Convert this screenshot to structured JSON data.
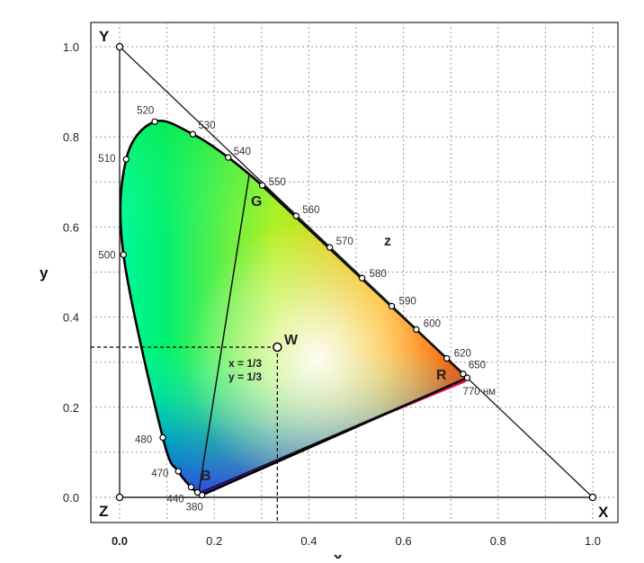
{
  "diagram": {
    "x_ticks": [
      "0.0",
      "0.2",
      "0.4",
      "0.6",
      "0.8",
      "1.0"
    ],
    "y_ticks": [
      "0.0",
      "0.2",
      "0.4",
      "0.6",
      "0.8",
      "1.0"
    ],
    "x_axis_label": "x",
    "y_axis_label": "y",
    "vertices": {
      "Y": "Y",
      "Z": "Z",
      "X": "X",
      "z": "z"
    },
    "primaries": {
      "R": "R",
      "G": "G",
      "B": "B",
      "W": "W"
    },
    "white_point": {
      "label": "W",
      "x": 0.3333,
      "y": 0.3333,
      "annot_x": "x = 1/3",
      "annot_y": "y = 1/3"
    },
    "primary_points": {
      "R": {
        "x": 0.735,
        "y": 0.265
      },
      "G": {
        "x": 0.274,
        "y": 0.717
      },
      "B": {
        "x": 0.167,
        "y": 0.009
      }
    },
    "wavelengths": [
      {
        "label": "380",
        "x": 0.1741,
        "y": 0.005
      },
      {
        "label": "440",
        "x": 0.1644,
        "y": 0.0109
      },
      {
        "label": "",
        "x": 0.151,
        "y": 0.0227
      },
      {
        "label": "470",
        "x": 0.1241,
        "y": 0.0578
      },
      {
        "label": "480",
        "x": 0.0913,
        "y": 0.1327
      },
      {
        "label": "500",
        "x": 0.0082,
        "y": 0.5384
      },
      {
        "label": "510",
        "x": 0.0139,
        "y": 0.7502
      },
      {
        "label": "520",
        "x": 0.0743,
        "y": 0.8338
      },
      {
        "label": "530",
        "x": 0.1547,
        "y": 0.8059
      },
      {
        "label": "540",
        "x": 0.2296,
        "y": 0.7543
      },
      {
        "label": "550",
        "x": 0.3016,
        "y": 0.6923
      },
      {
        "label": "560",
        "x": 0.3731,
        "y": 0.6245
      },
      {
        "label": "570",
        "x": 0.4441,
        "y": 0.5547
      },
      {
        "label": "580",
        "x": 0.5125,
        "y": 0.4866
      },
      {
        "label": "590",
        "x": 0.5752,
        "y": 0.4242
      },
      {
        "label": "600",
        "x": 0.627,
        "y": 0.3725
      },
      {
        "label": "620",
        "x": 0.6915,
        "y": 0.3083
      },
      {
        "label": "650",
        "x": 0.726,
        "y": 0.274
      },
      {
        "label": "770 нм",
        "x": 0.7347,
        "y": 0.2653
      }
    ]
  }
}
